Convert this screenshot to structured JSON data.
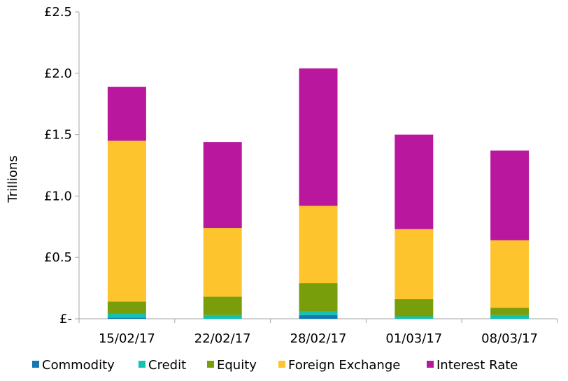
{
  "chart_data": {
    "type": "bar",
    "stacked": true,
    "categories": [
      "15/02/17",
      "22/02/17",
      "28/02/17",
      "01/03/17",
      "08/03/17"
    ],
    "series": [
      {
        "name": "Commodity",
        "color": "#1479b0",
        "values": [
          0.01,
          0.0,
          0.03,
          0.0,
          0.0
        ]
      },
      {
        "name": "Credit",
        "color": "#13c2b4",
        "values": [
          0.03,
          0.03,
          0.03,
          0.02,
          0.03
        ]
      },
      {
        "name": "Equity",
        "color": "#799e0b",
        "values": [
          0.1,
          0.15,
          0.23,
          0.14,
          0.06
        ]
      },
      {
        "name": "Foreign Exchange",
        "color": "#fdc42e",
        "values": [
          1.31,
          0.56,
          0.63,
          0.57,
          0.55
        ]
      },
      {
        "name": "Interest Rate",
        "color": "#b8179e",
        "values": [
          0.44,
          0.7,
          1.12,
          0.77,
          0.73
        ]
      }
    ],
    "ylabel": "Trillions",
    "ylim": [
      0,
      2.5
    ],
    "yticks": [
      0,
      0.5,
      1.0,
      1.5,
      2.0,
      2.5
    ],
    "ytick_labels": [
      "£-",
      "£0.5",
      "£1.0",
      "£1.5",
      "£2.0",
      "£2.5"
    ],
    "grid": false,
    "legend": "bottom"
  }
}
